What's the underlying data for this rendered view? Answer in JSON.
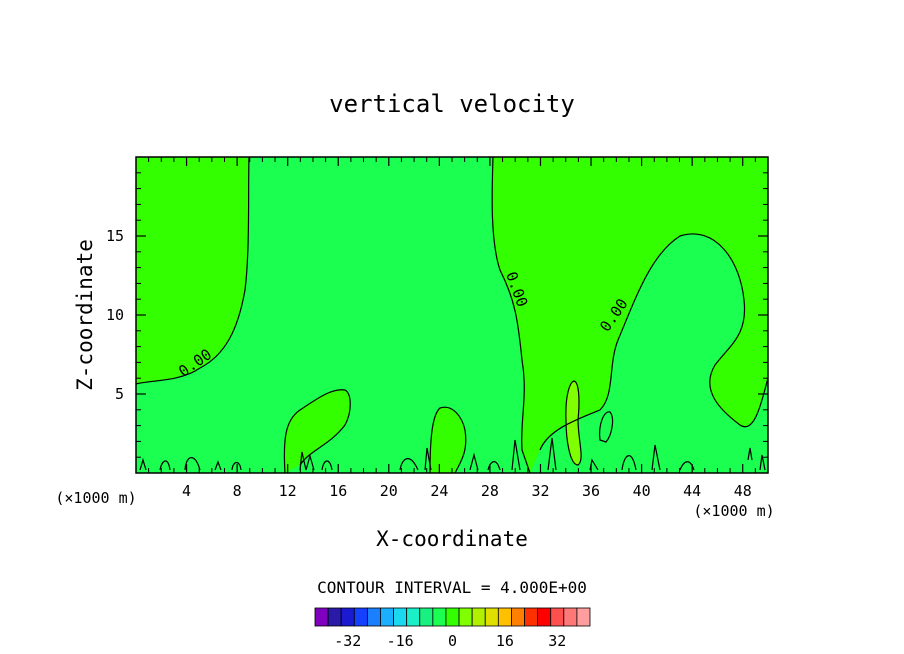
{
  "chart_data": {
    "type": "heatmap",
    "title": "vertical velocity",
    "xlabel": "X-coordinate",
    "ylabel": "Z-coordinate",
    "x_unit": "(×1000 m)",
    "y_unit": "(×1000 m)",
    "xlim": [
      0,
      50
    ],
    "ylim": [
      0,
      20
    ],
    "x_ticks": [
      "4",
      "8",
      "12",
      "16",
      "20",
      "24",
      "28",
      "32",
      "36",
      "40",
      "44",
      "48"
    ],
    "y_ticks": [
      "5",
      "10",
      "15"
    ],
    "contour_label": "0.00",
    "contour_interval_text": "CONTOUR INTERVAL = 4.000E+00",
    "colorbar": {
      "ticks": [
        "-32",
        "-16",
        "0",
        "16",
        "32"
      ],
      "colors": [
        "#7f00bf",
        "#2a1aa8",
        "#1a1ad0",
        "#1440ff",
        "#1a80ff",
        "#1ab0ff",
        "#1ad8f0",
        "#1af0c8",
        "#1af080",
        "#1aff50",
        "#33ff00",
        "#80ff00",
        "#b0f000",
        "#e0e000",
        "#ffc000",
        "#ff8000",
        "#ff3000",
        "#ff0000",
        "#ff5050",
        "#ff7878",
        "#ff9e9e"
      ]
    },
    "field_colors": {
      "positive_bin": "#33ff00",
      "near_zero_bin": "#1aff50",
      "strong_updraft": "#80ff00"
    }
  }
}
